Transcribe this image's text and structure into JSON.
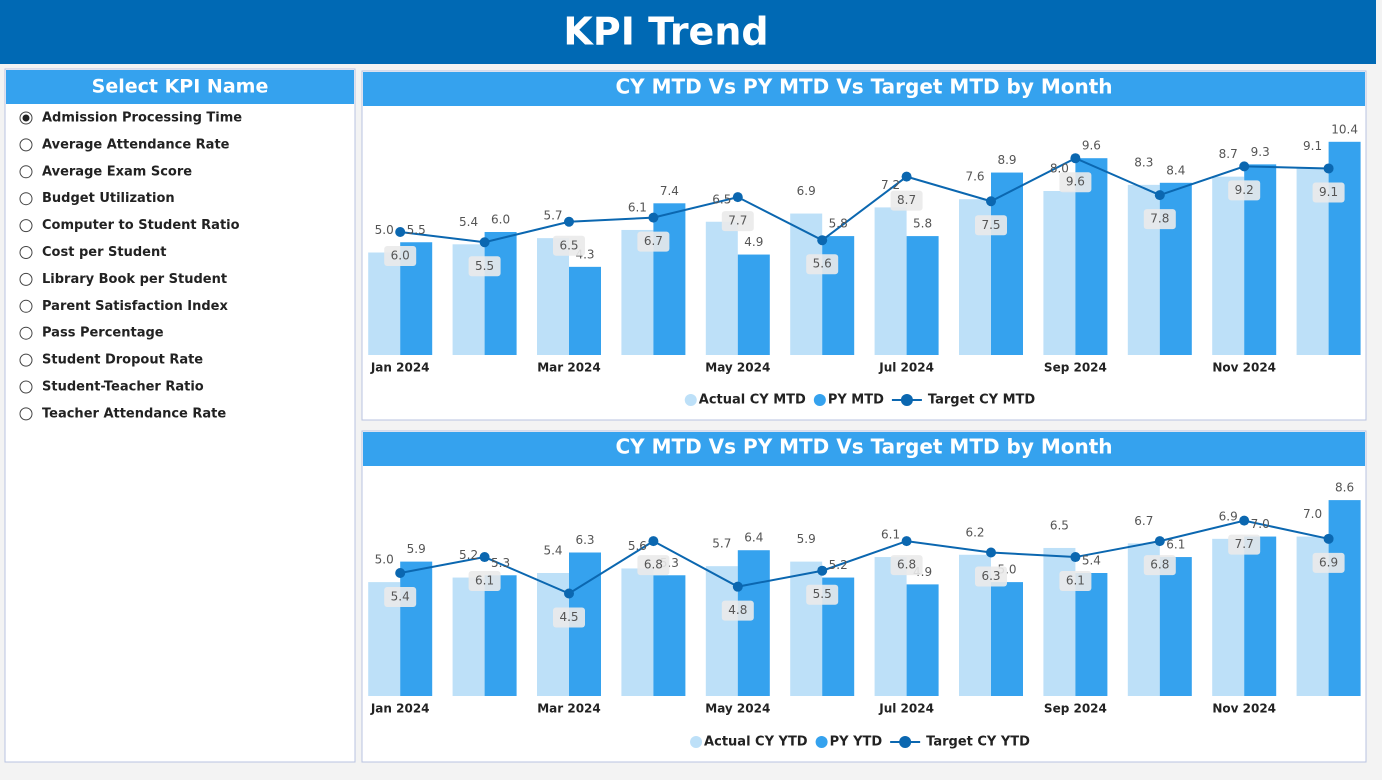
{
  "header": {
    "title": "KPI Trend"
  },
  "slicer": {
    "title": "Select KPI Name",
    "selected": 0,
    "items": [
      "Admission Processing Time",
      "Average Attendance Rate",
      "Average Exam Score",
      "Budget Utilization",
      "Computer to Student Ratio",
      "Cost per Student",
      "Library Book per Student",
      "Parent Satisfaction Index",
      "Pass Percentage",
      "Student Dropout Rate",
      "Student-Teacher Ratio",
      "Teacher Attendance Rate"
    ]
  },
  "chart_data": [
    {
      "type": "bar-line",
      "title": "CY MTD Vs PY MTD Vs Target MTD by Month",
      "categories": [
        "Jan 2024",
        null,
        "Mar 2024",
        null,
        "May 2024",
        null,
        "Jul 2024",
        null,
        "Sep 2024",
        null,
        "Nov 2024",
        null
      ],
      "ylim": [
        0,
        11
      ],
      "series": [
        {
          "name": "Actual CY MTD",
          "type": "bar",
          "color": "#bde0f8",
          "values": [
            5.0,
            5.4,
            5.7,
            6.1,
            6.5,
            6.9,
            7.2,
            7.6,
            8.0,
            8.3,
            8.7,
            9.1
          ],
          "value_labels": [
            "5.0",
            "5.4",
            "5.7",
            "6.1",
            "6.5",
            "6.9",
            "7.2",
            "7.6",
            "8.0",
            "8.3",
            "8.7",
            "9.1"
          ]
        },
        {
          "name": "PY MTD",
          "type": "bar",
          "color": "#35a2ee",
          "values": [
            5.5,
            6.0,
            4.3,
            7.4,
            4.9,
            5.8,
            5.8,
            8.9,
            9.6,
            8.4,
            9.3,
            10.4
          ],
          "value_labels": [
            "5.5",
            "6.0",
            "4.3",
            "7.4",
            "4.9",
            "5.8",
            "5.8",
            "8.9",
            "9.6",
            "8.4",
            "9.3",
            "10.4"
          ]
        },
        {
          "name": "Target CY MTD",
          "type": "line",
          "color": "#0b67b0",
          "values": [
            6.0,
            5.5,
            6.5,
            6.7,
            7.7,
            5.6,
            8.7,
            7.5,
            9.6,
            7.8,
            9.2,
            9.1
          ],
          "value_labels": [
            "6.0",
            "5.5",
            "6.5",
            "6.7",
            "7.7",
            "5.6",
            "8.7",
            "7.5",
            "9.6",
            "7.8",
            "9.2",
            "9.1"
          ]
        }
      ]
    },
    {
      "type": "bar-line",
      "title": "CY MTD Vs PY MTD Vs Target MTD by Month",
      "categories": [
        "Jan 2024",
        null,
        "Mar 2024",
        null,
        "May 2024",
        null,
        "Jul 2024",
        null,
        "Sep 2024",
        null,
        "Nov 2024",
        null
      ],
      "ylim": [
        0,
        9
      ],
      "series": [
        {
          "name": "Actual CY YTD",
          "type": "bar",
          "color": "#bde0f8",
          "values": [
            5.0,
            5.2,
            5.4,
            5.6,
            5.7,
            5.9,
            6.1,
            6.2,
            6.5,
            6.7,
            6.9,
            7.0
          ],
          "value_labels": [
            "5.0",
            "5.2",
            "5.4",
            "5.6",
            "5.7",
            "5.9",
            "6.1",
            "6.2",
            "6.5",
            "6.7",
            "6.9",
            "7.0"
          ]
        },
        {
          "name": "PY YTD",
          "type": "bar",
          "color": "#35a2ee",
          "values": [
            5.9,
            5.3,
            6.3,
            5.3,
            6.4,
            5.2,
            4.9,
            5.0,
            5.4,
            6.1,
            7.0,
            8.6
          ],
          "value_labels": [
            "5.9",
            "5.3",
            "6.3",
            "5.3",
            "6.4",
            "5.2",
            "4.9",
            "5.0",
            "5.4",
            "6.1",
            "7.0",
            "8.6"
          ]
        },
        {
          "name": "Target CY YTD",
          "type": "line",
          "color": "#0b67b0",
          "values": [
            5.4,
            6.1,
            4.5,
            6.8,
            4.8,
            5.5,
            6.8,
            6.3,
            6.1,
            6.8,
            7.7,
            6.9
          ],
          "value_labels": [
            "5.4",
            "6.1",
            "4.5",
            "6.8",
            "4.8",
            "5.5",
            "6.8",
            "6.3",
            "6.1",
            "6.8",
            "7.7",
            "6.9"
          ]
        }
      ]
    }
  ]
}
